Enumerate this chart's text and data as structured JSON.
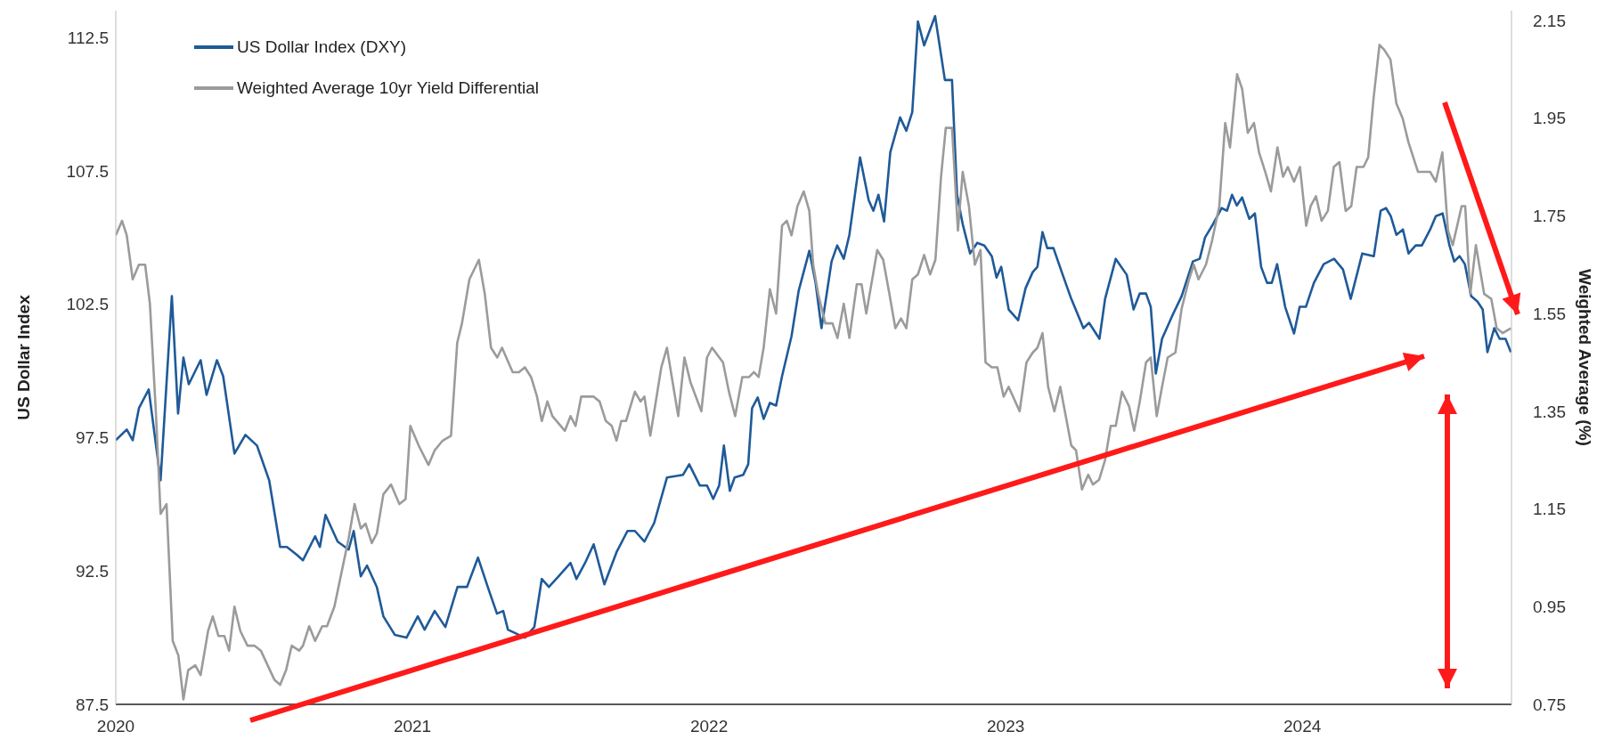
{
  "chart_data": {
    "type": "line",
    "ylabel": "US Dollar Index",
    "y2label": "Weighted Average (%)",
    "xlim": [
      2020,
      2024.705
    ],
    "xticks": [
      2020,
      2021,
      2022,
      2023,
      2024
    ],
    "ylim": [
      87.5,
      113.5
    ],
    "yticks": [
      87.5,
      92.5,
      97.5,
      102.5,
      107.5,
      112.5
    ],
    "y2lim": [
      0.75,
      2.17
    ],
    "y2ticks": [
      0.75,
      0.95,
      1.15,
      1.35,
      1.55,
      1.75,
      1.95,
      2.15
    ],
    "grid": false,
    "legend": "top left",
    "marker": "none",
    "line_style": "solid",
    "series": [
      {
        "name": "US Dollar Index (DXY)",
        "color": "#1f5a98",
        "x": [
          2020,
          2020.037,
          2020.057,
          2020.078,
          2020.111,
          2020.151,
          2020.189,
          2020.21,
          2020.228,
          2020.246,
          2020.286,
          2020.306,
          2020.341,
          2020.362,
          2020.4,
          2020.437,
          2020.476,
          2020.517,
          2020.554,
          2020.577,
          2020.611,
          2020.631,
          2020.672,
          2020.688,
          2020.707,
          2020.748,
          2020.785,
          2020.802,
          2020.826,
          2020.847,
          2020.88,
          2020.902,
          2020.941,
          2020.98,
          2021.018,
          2021.041,
          2021.075,
          2021.111,
          2021.152,
          2021.184,
          2021.221,
          2021.257,
          2021.285,
          2021.306,
          2021.322,
          2021.379,
          2021.411,
          2021.436,
          2021.46,
          2021.493,
          2021.533,
          2021.553,
          2021.582,
          2021.611,
          2021.647,
          2021.688,
          2021.725,
          2021.75,
          2021.782,
          2021.815,
          2021.858,
          2021.912,
          2021.933,
          2021.969,
          2021.993,
          2022.014,
          2022.034,
          2022.05,
          2022.07,
          2022.086,
          2022.115,
          2022.132,
          2022.145,
          2022.164,
          2022.184,
          2022.205,
          2022.226,
          2022.246,
          2022.278,
          2022.302,
          2022.338,
          2022.359,
          2022.379,
          2022.413,
          2022.432,
          2022.454,
          2022.473,
          2022.509,
          2022.538,
          2022.554,
          2022.571,
          2022.59,
          2022.611,
          2022.644,
          2022.665,
          2022.685,
          2022.704,
          2022.725,
          2022.762,
          2022.795,
          2022.819,
          2022.836,
          2022.855,
          2022.88,
          2022.904,
          2022.928,
          2022.953,
          2022.969,
          2022.985,
          2023.01,
          2023.042,
          2023.067,
          2023.091,
          2023.107,
          2023.124,
          2023.14,
          2023.161,
          2023.189,
          2023.221,
          2023.262,
          2023.281,
          2023.316,
          2023.335,
          2023.371,
          2023.408,
          2023.431,
          2023.452,
          2023.473,
          2023.489,
          2023.506,
          2023.527,
          2023.563,
          2023.593,
          2023.631,
          2023.654,
          2023.672,
          2023.699,
          2023.728,
          2023.746,
          2023.763,
          2023.779,
          2023.797,
          2023.821,
          2023.84,
          2023.861,
          2023.881,
          2023.897,
          2023.915,
          2023.942,
          2023.972,
          2023.991,
          2024.012,
          2024.039,
          2024.072,
          2024.107,
          2024.137,
          2024.163,
          2024.202,
          2024.241,
          2024.264,
          2024.282,
          2024.298,
          2024.317,
          2024.339,
          2024.358,
          2024.382,
          2024.403,
          2024.431,
          2024.45,
          2024.473,
          2024.496,
          2024.512,
          2024.53,
          2024.548,
          2024.569,
          2024.59,
          2024.608,
          2024.624,
          2024.647,
          2024.665,
          2024.685,
          2024.703
        ],
        "values": [
          97.4,
          97.8,
          97.4,
          98.6,
          99.3,
          95.9,
          102.8,
          98.4,
          100.5,
          99.5,
          100.4,
          99.1,
          100.4,
          99.8,
          96.9,
          97.6,
          97.2,
          95.9,
          93.4,
          93.4,
          93.1,
          92.9,
          93.8,
          93.4,
          94.6,
          93.6,
          93.3,
          94.0,
          92.3,
          92.7,
          91.9,
          90.8,
          90.1,
          90.0,
          90.8,
          90.3,
          91.0,
          90.4,
          91.9,
          91.9,
          93.0,
          91.8,
          90.9,
          91.0,
          90.3,
          90.0,
          90.4,
          92.2,
          91.9,
          92.3,
          92.8,
          92.2,
          92.8,
          93.5,
          92.0,
          93.2,
          94.0,
          94.0,
          93.6,
          94.3,
          96.0,
          96.1,
          96.5,
          95.7,
          95.7,
          95.2,
          95.7,
          97.2,
          95.5,
          96.0,
          96.1,
          96.5,
          98.6,
          99.0,
          98.2,
          98.8,
          98.7,
          99.8,
          101.3,
          103.0,
          104.5,
          103.3,
          101.6,
          104.1,
          104.7,
          104.2,
          105.1,
          108.0,
          106.4,
          106.0,
          106.6,
          105.6,
          108.2,
          109.5,
          109.0,
          109.7,
          113.1,
          112.2,
          113.3,
          110.9,
          110.9,
          106.6,
          105.5,
          104.4,
          104.8,
          104.7,
          104.3,
          103.5,
          103.9,
          102.3,
          101.9,
          103.1,
          103.7,
          103.9,
          105.2,
          104.6,
          104.6,
          103.7,
          102.7,
          101.6,
          101.8,
          101.2,
          102.7,
          104.2,
          103.6,
          102.3,
          102.9,
          102.9,
          102.4,
          99.9,
          101.2,
          102.1,
          102.8,
          104.1,
          104.2,
          105.0,
          105.5,
          106.1,
          106.0,
          106.6,
          106.2,
          106.5,
          105.7,
          105.9,
          103.9,
          103.3,
          103.3,
          104.0,
          102.4,
          101.4,
          102.4,
          102.4,
          103.3,
          104.0,
          104.2,
          103.8,
          102.7,
          104.4,
          104.3,
          106.0,
          106.1,
          105.8,
          105.1,
          105.3,
          104.4,
          104.7,
          104.7,
          105.3,
          105.8,
          105.9,
          104.7,
          104.1,
          104.3,
          104.0,
          102.8,
          102.6,
          102.3,
          100.7,
          101.6,
          101.2,
          101.2,
          100.7
        ]
      },
      {
        "name": "Weighted Average 10yr Yield Differential",
        "color": "#9b9b9b",
        "axis": "y2",
        "x": [
          2020,
          2020.021,
          2020.037,
          2020.057,
          2020.078,
          2020.099,
          2020.115,
          2020.135,
          2020.151,
          2020.171,
          2020.192,
          2020.211,
          2020.228,
          2020.244,
          2020.268,
          2020.286,
          2020.311,
          2020.327,
          2020.346,
          2020.366,
          2020.382,
          2020.4,
          2020.42,
          2020.444,
          2020.468,
          2020.489,
          2020.512,
          2020.535,
          2020.554,
          2020.574,
          2020.593,
          2020.618,
          2020.631,
          2020.652,
          2020.672,
          2020.696,
          2020.712,
          2020.737,
          2020.761,
          2020.785,
          2020.805,
          2020.826,
          2020.842,
          2020.863,
          2020.88,
          2020.902,
          2020.928,
          2020.956,
          2020.977,
          2020.993,
          2021.021,
          2021.054,
          2021.075,
          2021.102,
          2021.13,
          2021.151,
          2021.167,
          2021.192,
          2021.224,
          2021.244,
          2021.265,
          2021.286,
          2021.302,
          2021.338,
          2021.359,
          2021.379,
          2021.4,
          2021.42,
          2021.436,
          2021.455,
          2021.472,
          2021.514,
          2021.533,
          2021.55,
          2021.569,
          2021.59,
          2021.611,
          2021.631,
          2021.652,
          2021.672,
          2021.688,
          2021.704,
          2021.72,
          2021.75,
          2021.769,
          2021.782,
          2021.802,
          2021.839,
          2021.858,
          2021.896,
          2021.917,
          2021.937,
          2021.974,
          2021.993,
          2022.01,
          2022.047,
          2022.067,
          2022.088,
          2022.112,
          2022.135,
          2022.151,
          2022.167,
          2022.184,
          2022.205,
          2022.226,
          2022.246,
          2022.262,
          2022.278,
          2022.298,
          2022.319,
          2022.338,
          2022.351,
          2022.368,
          2022.392,
          2022.416,
          2022.433,
          2022.454,
          2022.473,
          2022.498,
          2022.514,
          2022.53,
          2022.567,
          2022.587,
          2022.608,
          2022.628,
          2022.647,
          2022.665,
          2022.685,
          2022.704,
          2022.725,
          2022.745,
          2022.763,
          2022.782,
          2022.798,
          2022.819,
          2022.839,
          2022.855,
          2022.876,
          2022.896,
          2022.915,
          2022.932,
          2022.953,
          2022.972,
          2022.993,
          2023.01,
          2023.047,
          2023.07,
          2023.091,
          2023.107,
          2023.124,
          2023.143,
          2023.164,
          2023.184,
          2023.221,
          2023.237,
          2023.257,
          2023.278,
          2023.294,
          2023.315,
          2023.335,
          2023.354,
          2023.371,
          2023.392,
          2023.416,
          2023.433,
          2023.452,
          2023.473,
          2023.489,
          2023.509,
          2023.527,
          2023.546,
          2023.572,
          2023.593,
          2023.618,
          2023.634,
          2023.65,
          2023.675,
          2023.696,
          2023.72,
          2023.74,
          2023.756,
          2023.78,
          2023.797,
          2023.816,
          2023.837,
          2023.854,
          2023.875,
          2023.894,
          2023.916,
          2023.935,
          2023.951,
          2023.972,
          2023.992,
          2024.013,
          2024.028,
          2024.046,
          2024.065,
          2024.086,
          2024.106,
          2024.125,
          2024.146,
          2024.165,
          2024.183,
          2024.206,
          2024.222,
          2024.24,
          2024.26,
          2024.276,
          2024.297,
          2024.317,
          2024.338,
          2024.358,
          2024.39,
          2024.431,
          2024.45,
          2024.472,
          2024.491,
          2024.507,
          2024.537,
          2024.549,
          2024.566,
          2024.585,
          2024.613,
          2024.637,
          2024.655,
          2024.675,
          2024.703
        ],
        "values": [
          1.71,
          1.74,
          1.71,
          1.62,
          1.65,
          1.65,
          1.57,
          1.35,
          1.14,
          1.16,
          0.88,
          0.85,
          0.76,
          0.82,
          0.83,
          0.81,
          0.9,
          0.93,
          0.89,
          0.89,
          0.86,
          0.95,
          0.9,
          0.87,
          0.87,
          0.86,
          0.83,
          0.8,
          0.79,
          0.82,
          0.87,
          0.86,
          0.87,
          0.91,
          0.88,
          0.91,
          0.91,
          0.95,
          1.02,
          1.09,
          1.16,
          1.11,
          1.12,
          1.08,
          1.1,
          1.18,
          1.2,
          1.16,
          1.17,
          1.32,
          1.28,
          1.24,
          1.27,
          1.29,
          1.3,
          1.49,
          1.53,
          1.62,
          1.66,
          1.59,
          1.48,
          1.46,
          1.48,
          1.43,
          1.43,
          1.44,
          1.42,
          1.38,
          1.33,
          1.37,
          1.34,
          1.31,
          1.34,
          1.32,
          1.38,
          1.38,
          1.38,
          1.37,
          1.33,
          1.32,
          1.29,
          1.33,
          1.33,
          1.39,
          1.37,
          1.38,
          1.3,
          1.44,
          1.48,
          1.34,
          1.46,
          1.41,
          1.35,
          1.46,
          1.48,
          1.45,
          1.39,
          1.34,
          1.42,
          1.42,
          1.43,
          1.42,
          1.48,
          1.6,
          1.55,
          1.73,
          1.74,
          1.71,
          1.77,
          1.8,
          1.76,
          1.65,
          1.59,
          1.53,
          1.53,
          1.5,
          1.57,
          1.5,
          1.61,
          1.61,
          1.55,
          1.68,
          1.66,
          1.59,
          1.52,
          1.54,
          1.52,
          1.62,
          1.63,
          1.67,
          1.63,
          1.66,
          1.83,
          1.93,
          1.93,
          1.72,
          1.84,
          1.77,
          1.65,
          1.68,
          1.45,
          1.44,
          1.44,
          1.38,
          1.4,
          1.35,
          1.45,
          1.47,
          1.48,
          1.51,
          1.4,
          1.35,
          1.4,
          1.28,
          1.27,
          1.19,
          1.22,
          1.2,
          1.21,
          1.25,
          1.32,
          1.32,
          1.39,
          1.36,
          1.31,
          1.37,
          1.45,
          1.46,
          1.34,
          1.4,
          1.46,
          1.47,
          1.56,
          1.62,
          1.65,
          1.62,
          1.65,
          1.7,
          1.77,
          1.94,
          1.89,
          2.04,
          2.01,
          1.92,
          1.94,
          1.88,
          1.84,
          1.8,
          1.89,
          1.83,
          1.85,
          1.82,
          1.85,
          1.73,
          1.77,
          1.79,
          1.74,
          1.76,
          1.85,
          1.86,
          1.76,
          1.77,
          1.85,
          1.85,
          1.87,
          1.99,
          2.1,
          2.09,
          2.07,
          1.98,
          1.95,
          1.9,
          1.84,
          1.84,
          1.82,
          1.88,
          1.72,
          1.69,
          1.77,
          1.77,
          1.59,
          1.69,
          1.59,
          1.58,
          1.52,
          1.51,
          1.52
        ]
      }
    ]
  }
}
